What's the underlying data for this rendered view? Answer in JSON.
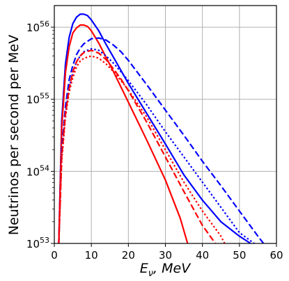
{
  "chart_data": {
    "type": "line",
    "xlabel": "E_ν, MeV",
    "ylabel": "Neutrinos per second per MeV",
    "xlim": [
      0,
      60
    ],
    "ylim_exponents": [
      53,
      56.3
    ],
    "yscale": "log",
    "grid": true,
    "xticks": [
      0,
      10,
      20,
      30,
      40,
      50,
      60
    ],
    "yticks": [
      {
        "base": "10",
        "exp": "53",
        "log": 53
      },
      {
        "base": "10",
        "exp": "54",
        "log": 54
      },
      {
        "base": "10",
        "exp": "55",
        "log": 55
      },
      {
        "base": "10",
        "exp": "56",
        "log": 56
      }
    ],
    "series": [
      {
        "color": "#0000ff",
        "style": "solid",
        "points": [
          [
            1.2,
            53
          ],
          [
            2,
            54.7
          ],
          [
            3,
            55.49
          ],
          [
            4,
            55.86
          ],
          [
            5,
            56.05
          ],
          [
            6,
            56.14
          ],
          [
            7,
            56.18
          ],
          [
            8,
            56.18
          ],
          [
            9,
            56.16
          ],
          [
            10,
            56.1
          ],
          [
            12,
            55.95
          ],
          [
            14,
            55.76
          ],
          [
            16,
            55.58
          ],
          [
            18,
            55.4
          ],
          [
            20,
            55.22
          ],
          [
            25,
            54.8
          ],
          [
            30,
            54.38
          ],
          [
            35,
            53.95
          ],
          [
            40,
            53.6
          ],
          [
            45,
            53.3
          ],
          [
            50,
            53.1
          ],
          [
            53,
            53
          ]
        ]
      },
      {
        "color": "#ff0000",
        "style": "solid",
        "points": [
          [
            1.2,
            53
          ],
          [
            2,
            54.6
          ],
          [
            3,
            55.37
          ],
          [
            4,
            55.73
          ],
          [
            5,
            55.92
          ],
          [
            6,
            55.99
          ],
          [
            7,
            56.03
          ],
          [
            8,
            56.03
          ],
          [
            9,
            56.01
          ],
          [
            10,
            55.95
          ],
          [
            12,
            55.78
          ],
          [
            14,
            55.58
          ],
          [
            16,
            55.38
          ],
          [
            18,
            55.17
          ],
          [
            20,
            54.96
          ],
          [
            25,
            54.43
          ],
          [
            30,
            53.88
          ],
          [
            34,
            53.35
          ],
          [
            36,
            53
          ]
        ]
      },
      {
        "color": "#0000ff",
        "style": "dashed",
        "points": [
          [
            1.2,
            53
          ],
          [
            2,
            54.3
          ],
          [
            3,
            54.9
          ],
          [
            4,
            55.27
          ],
          [
            5,
            55.47
          ],
          [
            6,
            55.62
          ],
          [
            7,
            55.71
          ],
          [
            8,
            55.77
          ],
          [
            10,
            55.84
          ],
          [
            12,
            55.85
          ],
          [
            14,
            55.82
          ],
          [
            16,
            55.75
          ],
          [
            18,
            55.66
          ],
          [
            20,
            55.54
          ],
          [
            25,
            55.2
          ],
          [
            30,
            54.85
          ],
          [
            35,
            54.5
          ],
          [
            40,
            54.14
          ],
          [
            45,
            53.8
          ],
          [
            50,
            53.45
          ],
          [
            55,
            53.1
          ],
          [
            56.5,
            53
          ]
        ]
      },
      {
        "color": "#0000ff",
        "style": "dotted",
        "points": [
          [
            1.2,
            53
          ],
          [
            2,
            54.2
          ],
          [
            3,
            54.8
          ],
          [
            4,
            55.15
          ],
          [
            5,
            55.37
          ],
          [
            6,
            55.52
          ],
          [
            7,
            55.6
          ],
          [
            8,
            55.66
          ],
          [
            10,
            55.7
          ],
          [
            12,
            55.68
          ],
          [
            14,
            55.6
          ],
          [
            16,
            55.5
          ],
          [
            18,
            55.38
          ],
          [
            20,
            55.26
          ],
          [
            25,
            54.92
          ],
          [
            30,
            54.55
          ],
          [
            35,
            54.2
          ],
          [
            40,
            53.85
          ],
          [
            45,
            53.5
          ],
          [
            50,
            53.15
          ],
          [
            54,
            53
          ]
        ]
      },
      {
        "color": "#ff0000",
        "style": "dashed",
        "points": [
          [
            1.2,
            53
          ],
          [
            2,
            54.2
          ],
          [
            3,
            54.8
          ],
          [
            4,
            55.15
          ],
          [
            5,
            55.38
          ],
          [
            6,
            55.52
          ],
          [
            7,
            55.6
          ],
          [
            8,
            55.65
          ],
          [
            10,
            55.68
          ],
          [
            12,
            55.64
          ],
          [
            14,
            55.55
          ],
          [
            16,
            55.42
          ],
          [
            18,
            55.28
          ],
          [
            20,
            55.12
          ],
          [
            25,
            54.68
          ],
          [
            30,
            54.2
          ],
          [
            35,
            53.72
          ],
          [
            40,
            53.25
          ],
          [
            43.5,
            53
          ]
        ]
      },
      {
        "color": "#ff0000",
        "style": "dotted",
        "points": [
          [
            1.2,
            53
          ],
          [
            2,
            54.15
          ],
          [
            3,
            54.75
          ],
          [
            4,
            55.1
          ],
          [
            5,
            55.3
          ],
          [
            6,
            55.45
          ],
          [
            7,
            55.53
          ],
          [
            8,
            55.57
          ],
          [
            10,
            55.6
          ],
          [
            12,
            55.57
          ],
          [
            14,
            55.49
          ],
          [
            16,
            55.38
          ],
          [
            18,
            55.26
          ],
          [
            20,
            55.13
          ],
          [
            25,
            54.75
          ],
          [
            30,
            54.3
          ],
          [
            35,
            53.85
          ],
          [
            40,
            53.45
          ],
          [
            45,
            53.1
          ],
          [
            46,
            53
          ]
        ]
      }
    ]
  }
}
